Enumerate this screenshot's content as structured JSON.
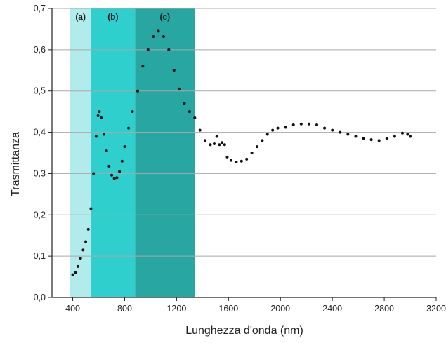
{
  "chart_data": {
    "type": "scatter",
    "xlabel": "Lunghezza d'onda (nm)",
    "ylabel": "Trasmittanza",
    "xlim": [
      240,
      3200
    ],
    "ylim": [
      0,
      0.7
    ],
    "x_ticks": [
      400,
      800,
      1200,
      1600,
      2000,
      2400,
      2800,
      3200
    ],
    "x_tick_labels": [
      "400",
      "800",
      "1200",
      "1600",
      "2000",
      "2400",
      "2800",
      "3200"
    ],
    "y_ticks": [
      0,
      0.1,
      0.2,
      0.3,
      0.4,
      0.5,
      0.6,
      0.7
    ],
    "y_tick_labels": [
      "0,0",
      "0,1",
      "0,2",
      "0,3",
      "0,4",
      "0,5",
      "0,6",
      "0,7"
    ],
    "grid": {
      "horizontal": true,
      "vertical": false
    },
    "regions": [
      {
        "label": "(a)",
        "x_start": 380,
        "x_end": 540,
        "color": "#b2ebeb"
      },
      {
        "label": "(b)",
        "x_start": 540,
        "x_end": 880,
        "color": "#2ecfcc"
      },
      {
        "label": "(c)",
        "x_start": 880,
        "x_end": 1340,
        "color": "#27a6a2"
      }
    ],
    "series": [
      {
        "color": "#111111",
        "points": [
          [
            400,
            0.055
          ],
          [
            420,
            0.06
          ],
          [
            440,
            0.075
          ],
          [
            460,
            0.095
          ],
          [
            480,
            0.115
          ],
          [
            500,
            0.135
          ],
          [
            520,
            0.165
          ],
          [
            540,
            0.215
          ],
          [
            560,
            0.3
          ],
          [
            580,
            0.39
          ],
          [
            595,
            0.44
          ],
          [
            605,
            0.45
          ],
          [
            620,
            0.435
          ],
          [
            640,
            0.395
          ],
          [
            660,
            0.355
          ],
          [
            680,
            0.318
          ],
          [
            700,
            0.296
          ],
          [
            720,
            0.288
          ],
          [
            740,
            0.29
          ],
          [
            760,
            0.305
          ],
          [
            780,
            0.33
          ],
          [
            800,
            0.365
          ],
          [
            830,
            0.41
          ],
          [
            860,
            0.45
          ],
          [
            900,
            0.5
          ],
          [
            940,
            0.56
          ],
          [
            980,
            0.6
          ],
          [
            1020,
            0.632
          ],
          [
            1060,
            0.645
          ],
          [
            1100,
            0.632
          ],
          [
            1140,
            0.6
          ],
          [
            1180,
            0.55
          ],
          [
            1220,
            0.505
          ],
          [
            1260,
            0.47
          ],
          [
            1300,
            0.45
          ],
          [
            1340,
            0.435
          ],
          [
            1380,
            0.405
          ],
          [
            1420,
            0.38
          ],
          [
            1460,
            0.37
          ],
          [
            1490,
            0.372
          ],
          [
            1510,
            0.39
          ],
          [
            1530,
            0.37
          ],
          [
            1550,
            0.375
          ],
          [
            1570,
            0.37
          ],
          [
            1590,
            0.34
          ],
          [
            1620,
            0.332
          ],
          [
            1660,
            0.328
          ],
          [
            1700,
            0.33
          ],
          [
            1740,
            0.335
          ],
          [
            1780,
            0.35
          ],
          [
            1820,
            0.365
          ],
          [
            1860,
            0.38
          ],
          [
            1900,
            0.395
          ],
          [
            1940,
            0.405
          ],
          [
            1980,
            0.41
          ],
          [
            2040,
            0.412
          ],
          [
            2100,
            0.418
          ],
          [
            2160,
            0.42
          ],
          [
            2220,
            0.42
          ],
          [
            2280,
            0.418
          ],
          [
            2340,
            0.41
          ],
          [
            2400,
            0.405
          ],
          [
            2460,
            0.4
          ],
          [
            2520,
            0.395
          ],
          [
            2580,
            0.39
          ],
          [
            2640,
            0.385
          ],
          [
            2700,
            0.382
          ],
          [
            2760,
            0.38
          ],
          [
            2820,
            0.385
          ],
          [
            2880,
            0.39
          ],
          [
            2940,
            0.398
          ],
          [
            2980,
            0.395
          ],
          [
            3000,
            0.39
          ]
        ]
      }
    ]
  }
}
